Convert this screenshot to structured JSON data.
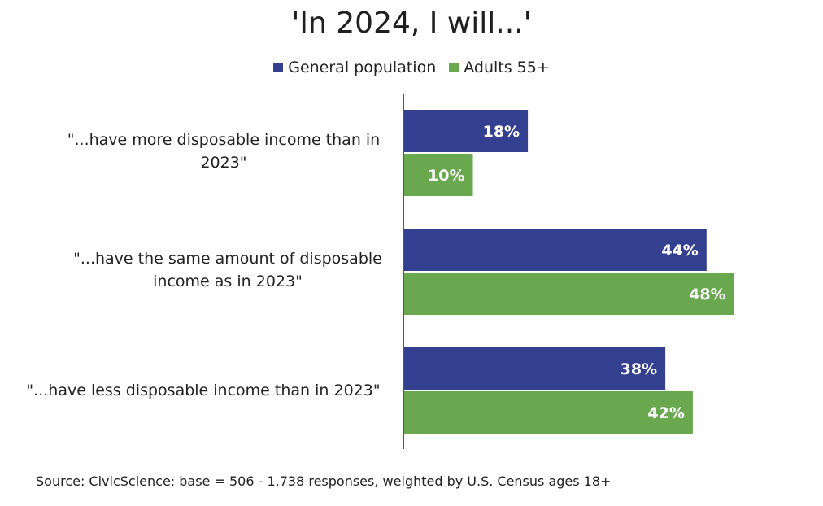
{
  "chart_data": {
    "type": "bar",
    "orientation": "horizontal",
    "title": "'In 2024, I will...'",
    "categories": [
      "\"...have more disposable income than in 2023\"",
      "\"...have the same amount of disposable income as in 2023\"",
      "\"...have less disposable income than in 2023\""
    ],
    "series": [
      {
        "name": "General population",
        "color": "#333f8f",
        "values": [
          18,
          44,
          38
        ],
        "labels": [
          "18%",
          "44%",
          "38%"
        ]
      },
      {
        "name": "Adults 55+",
        "color": "#6aa84f",
        "values": [
          10,
          48,
          42
        ],
        "labels": [
          "10%",
          "48%",
          "42%"
        ]
      }
    ],
    "xlim": [
      0,
      50
    ],
    "legend": "top-center",
    "grid": false
  },
  "source": "Source: CivicScience; base = 506 - 1,738 responses, weighted by U.S. Census ages 18+"
}
